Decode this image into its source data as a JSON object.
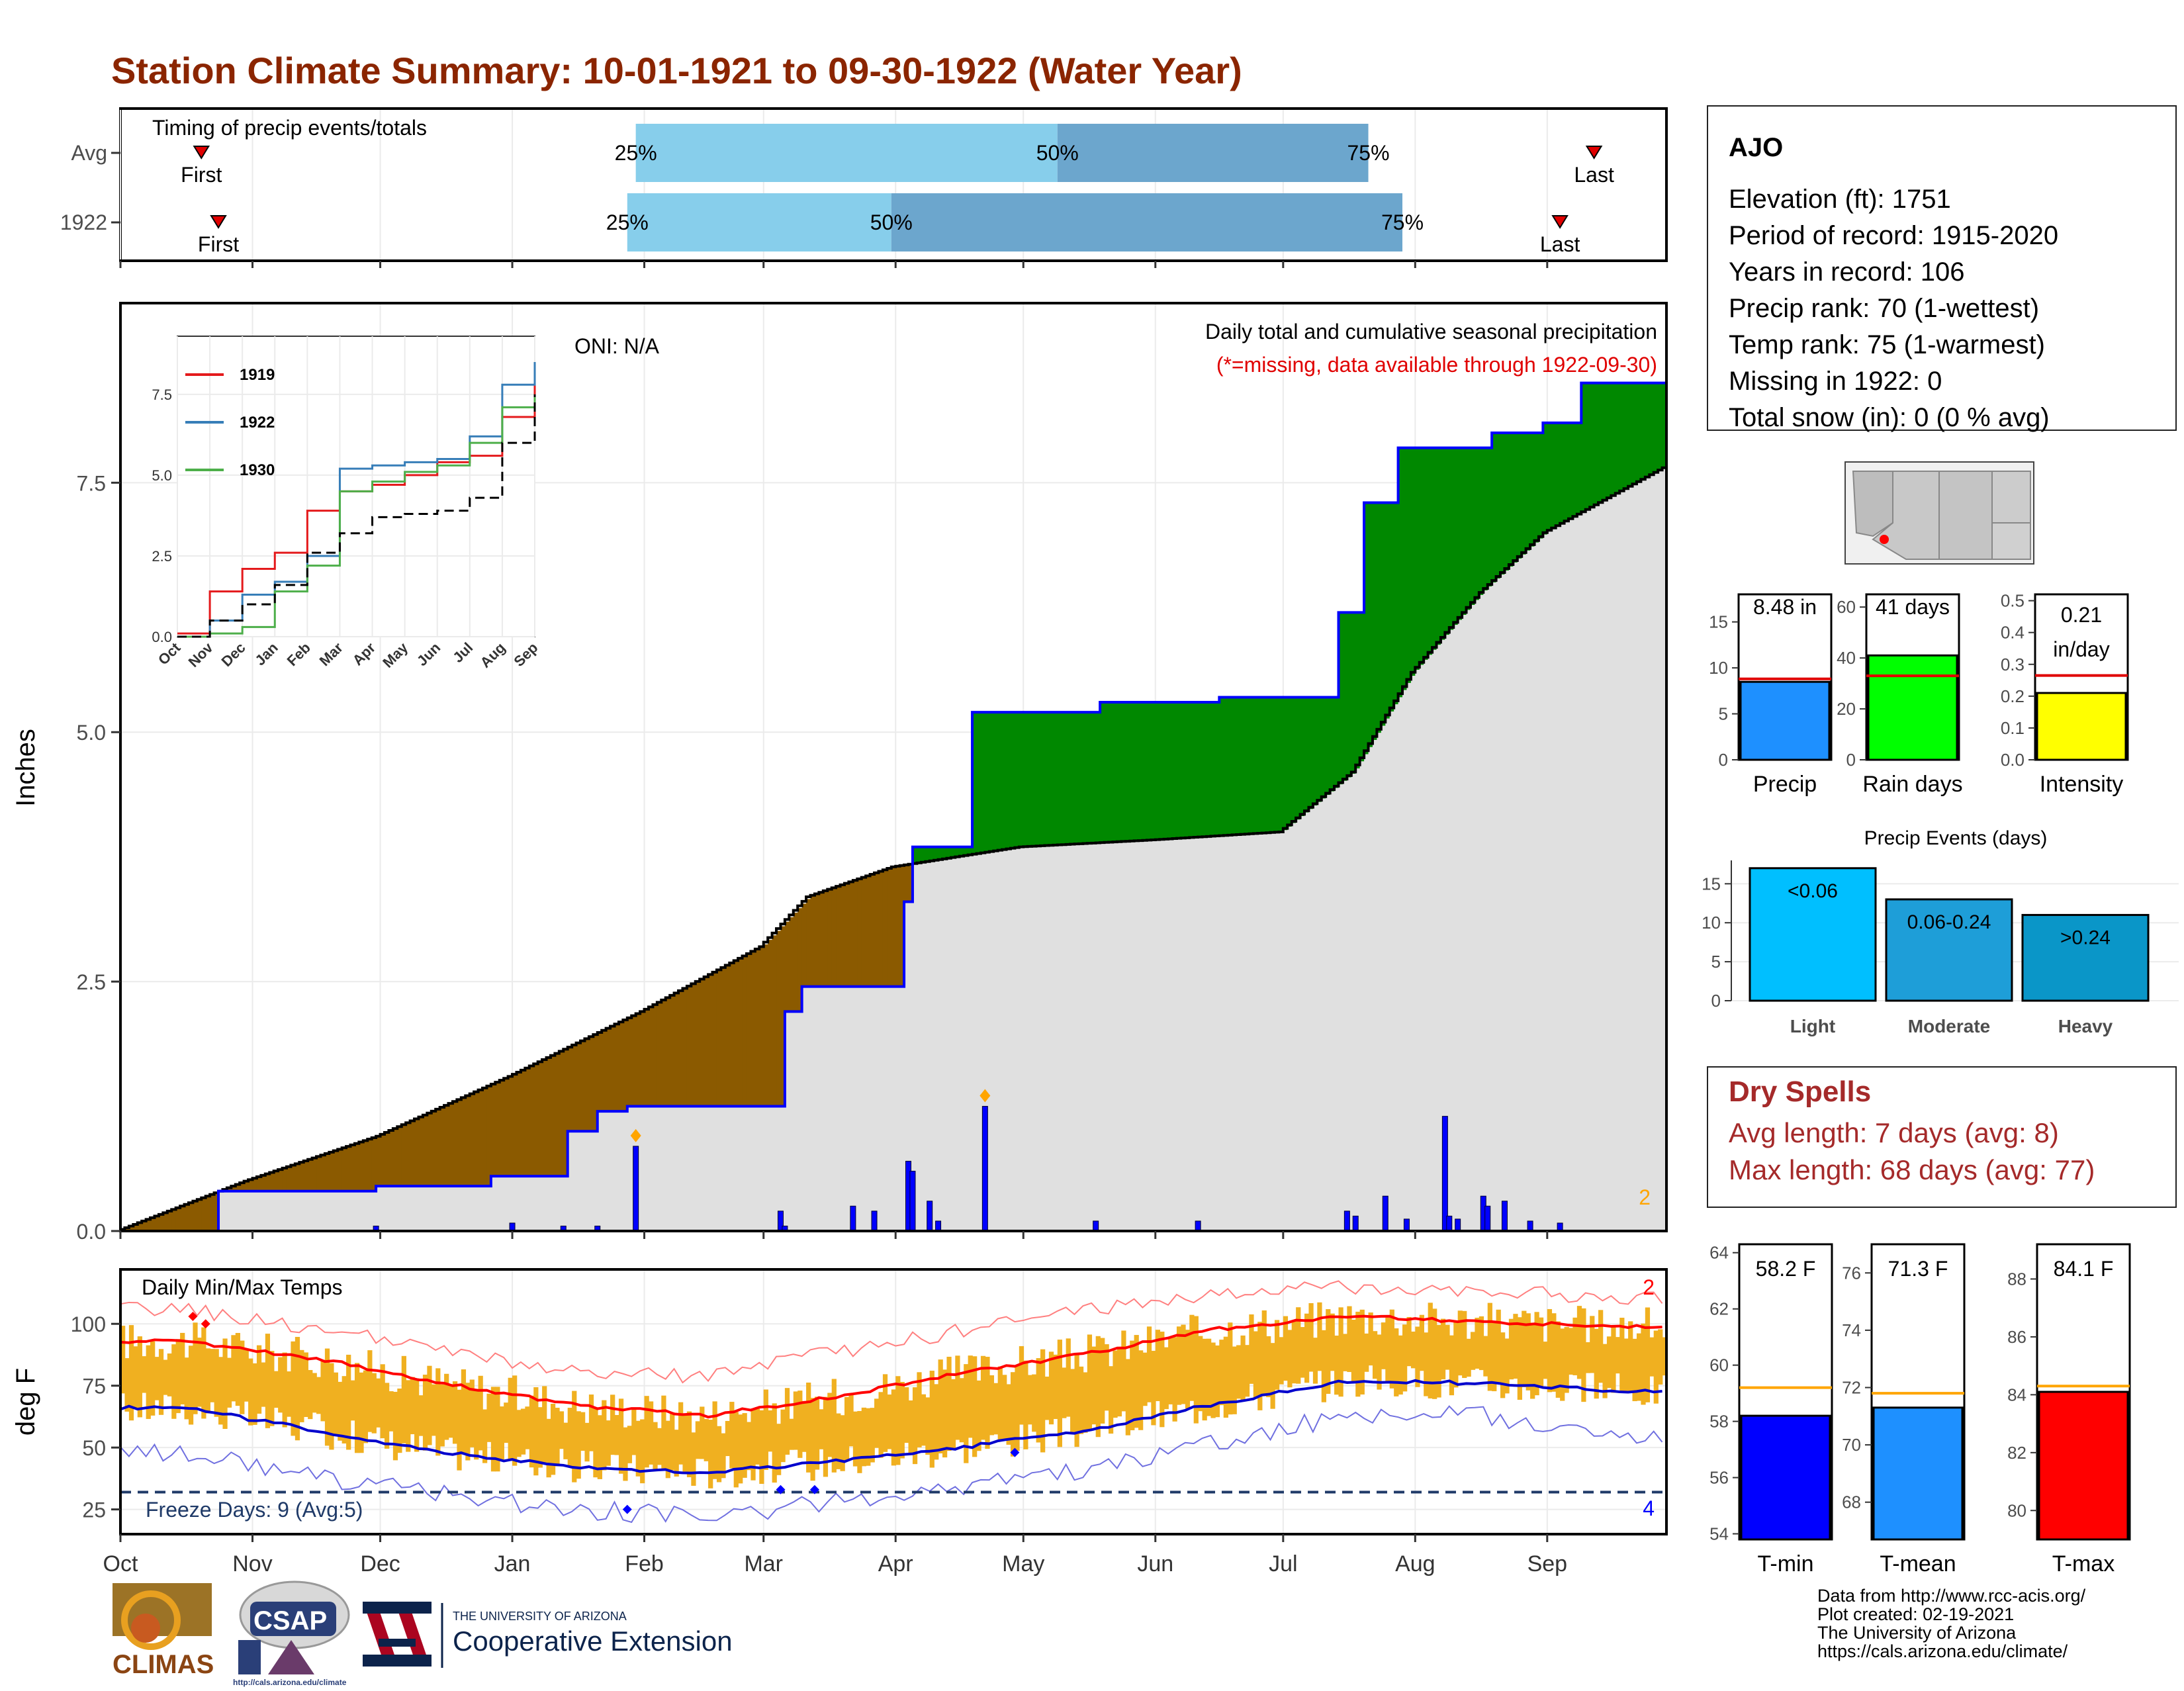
{
  "page": {
    "title": "Station Climate Summary: 10-01-1921 to 09-30-1922 (Water Year)",
    "colors": {
      "title": "#8B2500",
      "deficit": "#8B5A00",
      "surplus": "#008800",
      "avg_fill": "#E0E0E0",
      "precip_line": "#0000FF",
      "tmax": "#FF0000",
      "tmin": "#0000CC",
      "temp_bar": "#F0B020",
      "q_light": "#87CEEB",
      "q_dark": "#6CA6CD",
      "dry_spell": "#A52A2A"
    }
  },
  "timing": {
    "label": "Timing of precip events/totals",
    "rows": [
      {
        "name": "Avg",
        "first": "First",
        "p25": "25%",
        "p50": "50%",
        "p75": "75%",
        "last": "Last",
        "first_day": 19,
        "q25_day": 121,
        "q50_day": 220,
        "q75_day": 293,
        "last_day": 346
      },
      {
        "name": "1922",
        "first": "First",
        "p25": "25%",
        "p50": "50%",
        "p75": "75%",
        "last": "Last",
        "first_day": 23,
        "q25_day": 119,
        "q50_day": 181,
        "q75_day": 301,
        "last_day": 338
      }
    ]
  },
  "precip": {
    "oni": "ONI: N/A",
    "subtitle": "Daily total and cumulative seasonal precipitation",
    "missing_note": "(*=missing, data available through 1922-09-30)",
    "ylabel": "Inches",
    "yticks": [
      "0.0",
      "2.5",
      "5.0",
      "7.5"
    ],
    "corner_count": "2"
  },
  "inset": {
    "legend": [
      "1919",
      "1922",
      "1930"
    ],
    "legend_colors": [
      "#E41A1C",
      "#377EB8",
      "#4DAF4A"
    ],
    "yticks": [
      "0.0",
      "2.5",
      "5.0",
      "7.5"
    ],
    "xticks": [
      "Oct",
      "Nov",
      "Dec",
      "Jan",
      "Feb",
      "Mar",
      "Apr",
      "May",
      "Jun",
      "Jul",
      "Aug",
      "Sep"
    ]
  },
  "temps": {
    "label": "Daily Min/Max Temps",
    "ylabel": "deg F",
    "yticks": [
      "25",
      "50",
      "75",
      "100"
    ],
    "freeze": "Freeze Days: 9 (Avg:5)",
    "max_count": "2",
    "min_count": "4"
  },
  "months": [
    "Oct",
    "Nov",
    "Dec",
    "Jan",
    "Feb",
    "Mar",
    "Apr",
    "May",
    "Jun",
    "Jul",
    "Aug",
    "Sep"
  ],
  "station": {
    "name": "AJO",
    "lines": [
      "Elevation (ft): 1751",
      "Period of record: 1915-2020",
      "Years in record: 106",
      "Precip rank: 70 (1-wettest)",
      "Temp rank: 75 (1-warmest)",
      "Missing in 1922: 0",
      "Total snow (in): 0 (0 % avg)"
    ]
  },
  "mini_bars": [
    {
      "label": "Precip",
      "value_text": "8.48 in",
      "value": 8.48,
      "avg": 8.8,
      "ymax": 18,
      "ticks": [
        "0",
        "5",
        "10",
        "15"
      ],
      "tick_vals": [
        0,
        5,
        10,
        15
      ],
      "color": "#1E90FF"
    },
    {
      "label": "Rain days",
      "value_text": "41 days",
      "value": 41,
      "avg": 33,
      "ymax": 65,
      "ticks": [
        "0",
        "20",
        "40",
        "60"
      ],
      "tick_vals": [
        0,
        20,
        40,
        60
      ],
      "color": "#00FF00"
    },
    {
      "label": "Intensity",
      "value_text": "0.21\nin/day",
      "value": 0.21,
      "avg": 0.265,
      "ymax": 0.52,
      "ticks": [
        "0.0",
        "0.1",
        "0.2",
        "0.3",
        "0.4",
        "0.5"
      ],
      "tick_vals": [
        0,
        0.1,
        0.2,
        0.3,
        0.4,
        0.5
      ],
      "color": "#FFFF00"
    }
  ],
  "events": {
    "title": "Precip Events (days)",
    "yticks": [
      "0",
      "5",
      "10",
      "15"
    ],
    "bars": [
      {
        "label": "Light",
        "text": "<0.06",
        "value": 17,
        "color": "#00BFFF"
      },
      {
        "label": "Moderate",
        "text": "0.06-0.24",
        "value": 13,
        "color": "#1E9ED8"
      },
      {
        "label": "Heavy",
        "text": ">0.24",
        "value": 11,
        "color": "#0A96C8"
      }
    ]
  },
  "dry_spells": {
    "title": "Dry Spells",
    "avg": "Avg length: 7 days (avg: 8)",
    "max": "Max length: 68 days (avg: 77)"
  },
  "temp_bars": [
    {
      "label": "T-min",
      "value_text": "58.2 F",
      "value": 58.2,
      "avg": 59.2,
      "ymin": 53.8,
      "ymax": 64.3,
      "ticks": [
        "54",
        "56",
        "58",
        "60",
        "62",
        "64"
      ],
      "tick_vals": [
        54,
        56,
        58,
        60,
        62,
        64
      ],
      "color": "#0000FF"
    },
    {
      "label": "T-mean",
      "value_text": "71.3 F",
      "value": 71.3,
      "avg": 71.8,
      "ymin": 66.7,
      "ymax": 77.0,
      "ticks": [
        "68",
        "70",
        "72",
        "74",
        "76"
      ],
      "tick_vals": [
        68,
        70,
        72,
        74,
        76
      ],
      "color": "#1E90FF"
    },
    {
      "label": "T-max",
      "value_text": "84.1 F",
      "value": 84.1,
      "avg": 84.3,
      "ymin": 79.0,
      "ymax": 89.2,
      "ticks": [
        "80",
        "82",
        "84",
        "86",
        "88"
      ],
      "tick_vals": [
        80,
        82,
        84,
        86,
        88
      ],
      "color": "#FF0000"
    }
  ],
  "footer": {
    "lines": [
      "Data from http://www.rcc-acis.org/",
      "Plot created: 02-19-2021",
      "The University of Arizona",
      "https://cals.arizona.edu/climate/"
    ],
    "climas": "CLIMAS",
    "csap": "CSAP",
    "csap_url": "http://cals.arizona.edu/climate",
    "ua_small": "THE UNIVERSITY OF ARIZONA",
    "ua_big": "Cooperative Extension"
  },
  "chart_data": [
    {
      "type": "area",
      "title": "Daily total and cumulative seasonal precipitation",
      "ylabel": "Inches",
      "ylim": [
        0,
        9.3
      ],
      "x_unit": "day of water year (0 = Oct 1)",
      "series": [
        {
          "name": "cumulative 1922",
          "x": [
            0,
            23,
            23,
            60,
            60,
            87,
            87,
            105,
            105,
            112,
            112,
            119,
            119,
            156,
            156,
            160,
            160,
            184,
            184,
            186,
            186,
            200,
            200,
            230,
            230,
            258,
            258,
            286,
            286,
            292,
            292,
            300,
            300,
            322,
            322,
            334,
            334,
            343,
            343,
            358,
            363
          ],
          "values": [
            0,
            0,
            0.4,
            0.4,
            0.45,
            0.45,
            0.55,
            0.55,
            1.0,
            1.0,
            1.2,
            1.2,
            1.25,
            1.25,
            2.2,
            2.2,
            2.45,
            2.45,
            3.3,
            3.3,
            3.85,
            3.85,
            5.2,
            5.2,
            5.3,
            5.3,
            5.35,
            5.35,
            6.2,
            6.2,
            7.3,
            7.3,
            7.85,
            7.85,
            8.0,
            8.0,
            8.1,
            8.1,
            8.5,
            8.5,
            8.5
          ]
        },
        {
          "name": "average cumulative",
          "x": [
            0,
            30,
            61,
            92,
            123,
            151,
            162,
            182,
            212,
            243,
            273,
            290,
            304,
            320,
            335,
            363
          ],
          "values": [
            0,
            0.5,
            0.95,
            1.55,
            2.2,
            2.85,
            3.35,
            3.65,
            3.85,
            3.92,
            4.0,
            4.6,
            5.6,
            6.4,
            7.0,
            7.65
          ]
        },
        {
          "name": "daily precip",
          "x": [
            60,
            92,
            104,
            112,
            121,
            155,
            156,
            172,
            177,
            185,
            186,
            190,
            192,
            203,
            229,
            253,
            288,
            290,
            297,
            302,
            311,
            312,
            314,
            320,
            321,
            325,
            331,
            338
          ],
          "values": [
            0.05,
            0.08,
            0.05,
            0.05,
            0.85,
            0.2,
            0.05,
            0.25,
            0.2,
            0.7,
            0.6,
            0.3,
            0.1,
            1.25,
            0.1,
            0.1,
            0.2,
            0.15,
            0.35,
            0.12,
            1.15,
            0.15,
            0.12,
            0.35,
            0.25,
            0.3,
            0.1,
            0.08
          ]
        }
      ]
    },
    {
      "type": "line",
      "title": "",
      "x": [
        "Oct",
        "Nov",
        "Dec",
        "Jan",
        "Feb",
        "Mar",
        "Apr",
        "May",
        "Jun",
        "Jul",
        "Aug",
        "Sep"
      ],
      "ylim": [
        0,
        9
      ],
      "series": [
        {
          "name": "1919",
          "values": [
            0.1,
            1.4,
            2.1,
            2.6,
            3.9,
            4.5,
            4.7,
            5.0,
            5.4,
            5.6,
            6.8,
            8.4
          ]
        },
        {
          "name": "1922",
          "values": [
            0.0,
            0.5,
            1.3,
            1.7,
            2.5,
            5.2,
            5.3,
            5.4,
            5.5,
            6.2,
            7.8,
            8.5
          ]
        },
        {
          "name": "1930",
          "values": [
            0.0,
            0.1,
            0.3,
            1.4,
            2.2,
            4.5,
            4.8,
            5.1,
            5.3,
            6.0,
            7.1,
            7.5
          ]
        },
        {
          "name": "average",
          "values": [
            0.0,
            0.5,
            1.0,
            1.6,
            2.6,
            3.2,
            3.7,
            3.8,
            3.9,
            4.3,
            6.0,
            7.5
          ]
        }
      ]
    },
    {
      "type": "line",
      "title": "Daily Min/Max Temps",
      "ylabel": "deg F",
      "ylim": [
        15,
        122
      ],
      "x": [
        "Oct",
        "Nov",
        "Dec",
        "Jan",
        "Feb",
        "Mar",
        "Apr",
        "May",
        "Jun",
        "Jul",
        "Aug",
        "Sep"
      ],
      "series": [
        {
          "name": "avg max",
          "values": [
            93,
            86,
            76,
            67,
            63,
            70,
            80,
            88,
            98,
            103,
            101,
            99
          ]
        },
        {
          "name": "avg min",
          "values": [
            66,
            57,
            48,
            42,
            40,
            44,
            50,
            57,
            68,
            77,
            76,
            73
          ]
        },
        {
          "name": "record max",
          "values": [
            106,
            98,
            89,
            80,
            79,
            88,
            97,
            106,
            112,
            115,
            114,
            110
          ]
        },
        {
          "name": "record min",
          "values": [
            48,
            38,
            31,
            25,
            22,
            28,
            34,
            41,
            52,
            63,
            63,
            55
          ]
        }
      ]
    }
  ]
}
